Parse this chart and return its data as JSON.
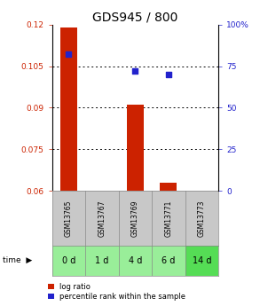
{
  "title": "GDS945 / 800",
  "samples": [
    "GSM13765",
    "GSM13767",
    "GSM13769",
    "GSM13771",
    "GSM13773"
  ],
  "time_labels": [
    "0 d",
    "1 d",
    "4 d",
    "6 d",
    "14 d"
  ],
  "log_ratio": [
    0.119,
    null,
    0.091,
    0.063,
    null
  ],
  "percentile_rank": [
    82,
    null,
    72,
    70,
    null
  ],
  "ylim_left": [
    0.06,
    0.12
  ],
  "ylim_right": [
    0,
    100
  ],
  "yticks_left": [
    0.06,
    0.075,
    0.09,
    0.105,
    0.12
  ],
  "yticks_right": [
    0,
    25,
    50,
    75,
    100
  ],
  "ytick_labels_right": [
    "0",
    "25",
    "50",
    "75",
    "100%"
  ],
  "bar_color": "#CC2200",
  "scatter_color": "#2222CC",
  "bar_width": 0.5,
  "title_fontsize": 10,
  "tick_fontsize": 6.5,
  "gsm_bg_color": "#C8C8C8",
  "time_bg_color": "#99EE99",
  "time_bg_last": "#55DD55",
  "legend_log_ratio": "log ratio",
  "legend_percentile": "percentile rank within the sample"
}
